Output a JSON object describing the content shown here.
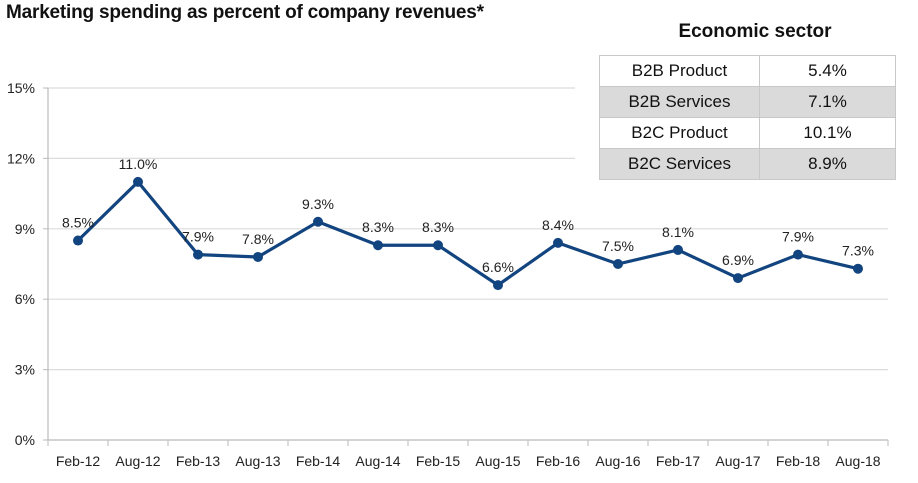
{
  "chart_data": {
    "type": "line",
    "title": "Marketing spending as percent of company revenues*",
    "xlabel": "",
    "ylabel": "",
    "categories": [
      "Feb-12",
      "Aug-12",
      "Feb-13",
      "Aug-13",
      "Feb-14",
      "Aug-14",
      "Feb-15",
      "Aug-15",
      "Feb-16",
      "Aug-16",
      "Feb-17",
      "Aug-17",
      "Feb-18",
      "Aug-18"
    ],
    "series": [
      {
        "name": "Marketing spending",
        "values": [
          8.5,
          11.0,
          7.9,
          7.8,
          9.3,
          8.3,
          8.3,
          6.6,
          8.4,
          7.5,
          8.1,
          6.9,
          7.9,
          7.3
        ],
        "labels": [
          "8.5%",
          "11.0%",
          "7.9%",
          "7.8%",
          "9.3%",
          "8.3%",
          "8.3%",
          "6.6%",
          "8.4%",
          "7.5%",
          "8.1%",
          "6.9%",
          "7.9%",
          "7.3%"
        ],
        "color": "#12447f"
      }
    ],
    "ylim": [
      0,
      15
    ],
    "yticks": [
      0,
      3,
      6,
      9,
      12,
      15
    ],
    "ytick_labels": [
      "0%",
      "3%",
      "6%",
      "9%",
      "12%",
      "15%"
    ],
    "grid": true,
    "legend": "none"
  },
  "sector_table": {
    "title": "Economic sector",
    "rows": [
      {
        "label": "B2B Product",
        "value": "5.4%"
      },
      {
        "label": "B2B Services",
        "value": "7.1%"
      },
      {
        "label": "B2C Product",
        "value": "10.1%"
      },
      {
        "label": "B2C Services",
        "value": "8.9%"
      }
    ]
  }
}
